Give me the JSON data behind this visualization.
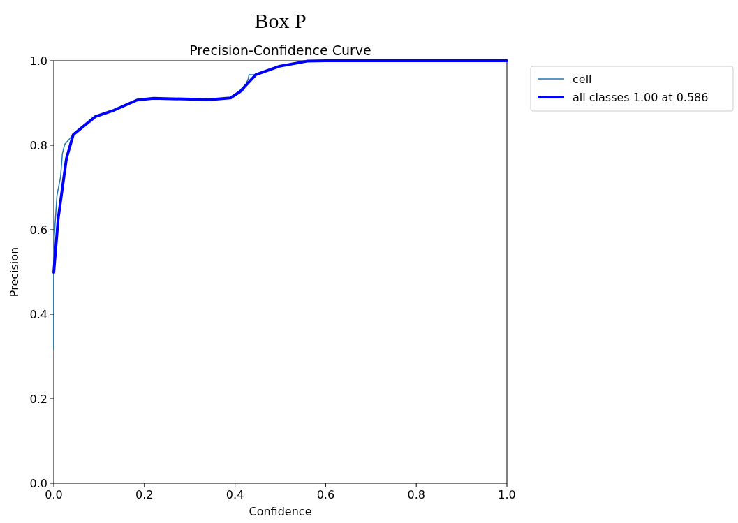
{
  "chart_data": {
    "type": "line",
    "title": "Box P",
    "subtitle": "Precision-Confidence Curve",
    "xlabel": "Confidence",
    "ylabel": "Precision",
    "xlim": [
      0,
      1
    ],
    "ylim": [
      0,
      1
    ],
    "xticks": [
      {
        "value": 0,
        "label": "0.0"
      },
      {
        "value": 0.2,
        "label": "0.2"
      },
      {
        "value": 0.4,
        "label": "0.4"
      },
      {
        "value": 0.6,
        "label": "0.6"
      },
      {
        "value": 0.8,
        "label": "0.8"
      },
      {
        "value": 1,
        "label": "1.0"
      }
    ],
    "yticks": [
      {
        "value": 0,
        "label": "0.0"
      },
      {
        "value": 0.2,
        "label": "0.2"
      },
      {
        "value": 0.4,
        "label": "0.4"
      },
      {
        "value": 0.6,
        "label": "0.6"
      },
      {
        "value": 0.8,
        "label": "0.8"
      },
      {
        "value": 1,
        "label": "1.0"
      }
    ],
    "grid": false,
    "legend": "top right",
    "marker": "none",
    "line_style": "solid",
    "series": [
      {
        "name": "cell",
        "color": "#1f77b4",
        "x": [
          0,
          0,
          0.001,
          0.007,
          0.015,
          0.019,
          0.024,
          0.038,
          0.043,
          0.092,
          0.133,
          0.184,
          0.22,
          0.344,
          0.39,
          0.405,
          0.418,
          0.429,
          0.431,
          0.441,
          0.446,
          0.498
        ],
        "values": [
          0.317,
          0.5,
          0.582,
          0.681,
          0.725,
          0.78,
          0.802,
          0.819,
          0.825,
          0.868,
          0.883,
          0.907,
          0.911,
          0.908,
          0.912,
          0.921,
          0.929,
          0.957,
          0.967,
          0.967,
          0.967,
          0.987
        ]
      },
      {
        "name": "all classes 1.00 at 0.586",
        "color": "#0000ff",
        "x": [
          0,
          0.0097,
          0.028,
          0.043,
          0.092,
          0.133,
          0.184,
          0.22,
          0.344,
          0.39,
          0.41,
          0.446,
          0.498,
          0.559,
          0.6,
          0.8,
          1.0
        ],
        "values": [
          0.499,
          0.626,
          0.769,
          0.825,
          0.868,
          0.883,
          0.907,
          0.911,
          0.908,
          0.912,
          0.926,
          0.967,
          0.987,
          0.999,
          1.0,
          1.0,
          1.0
        ]
      }
    ]
  }
}
